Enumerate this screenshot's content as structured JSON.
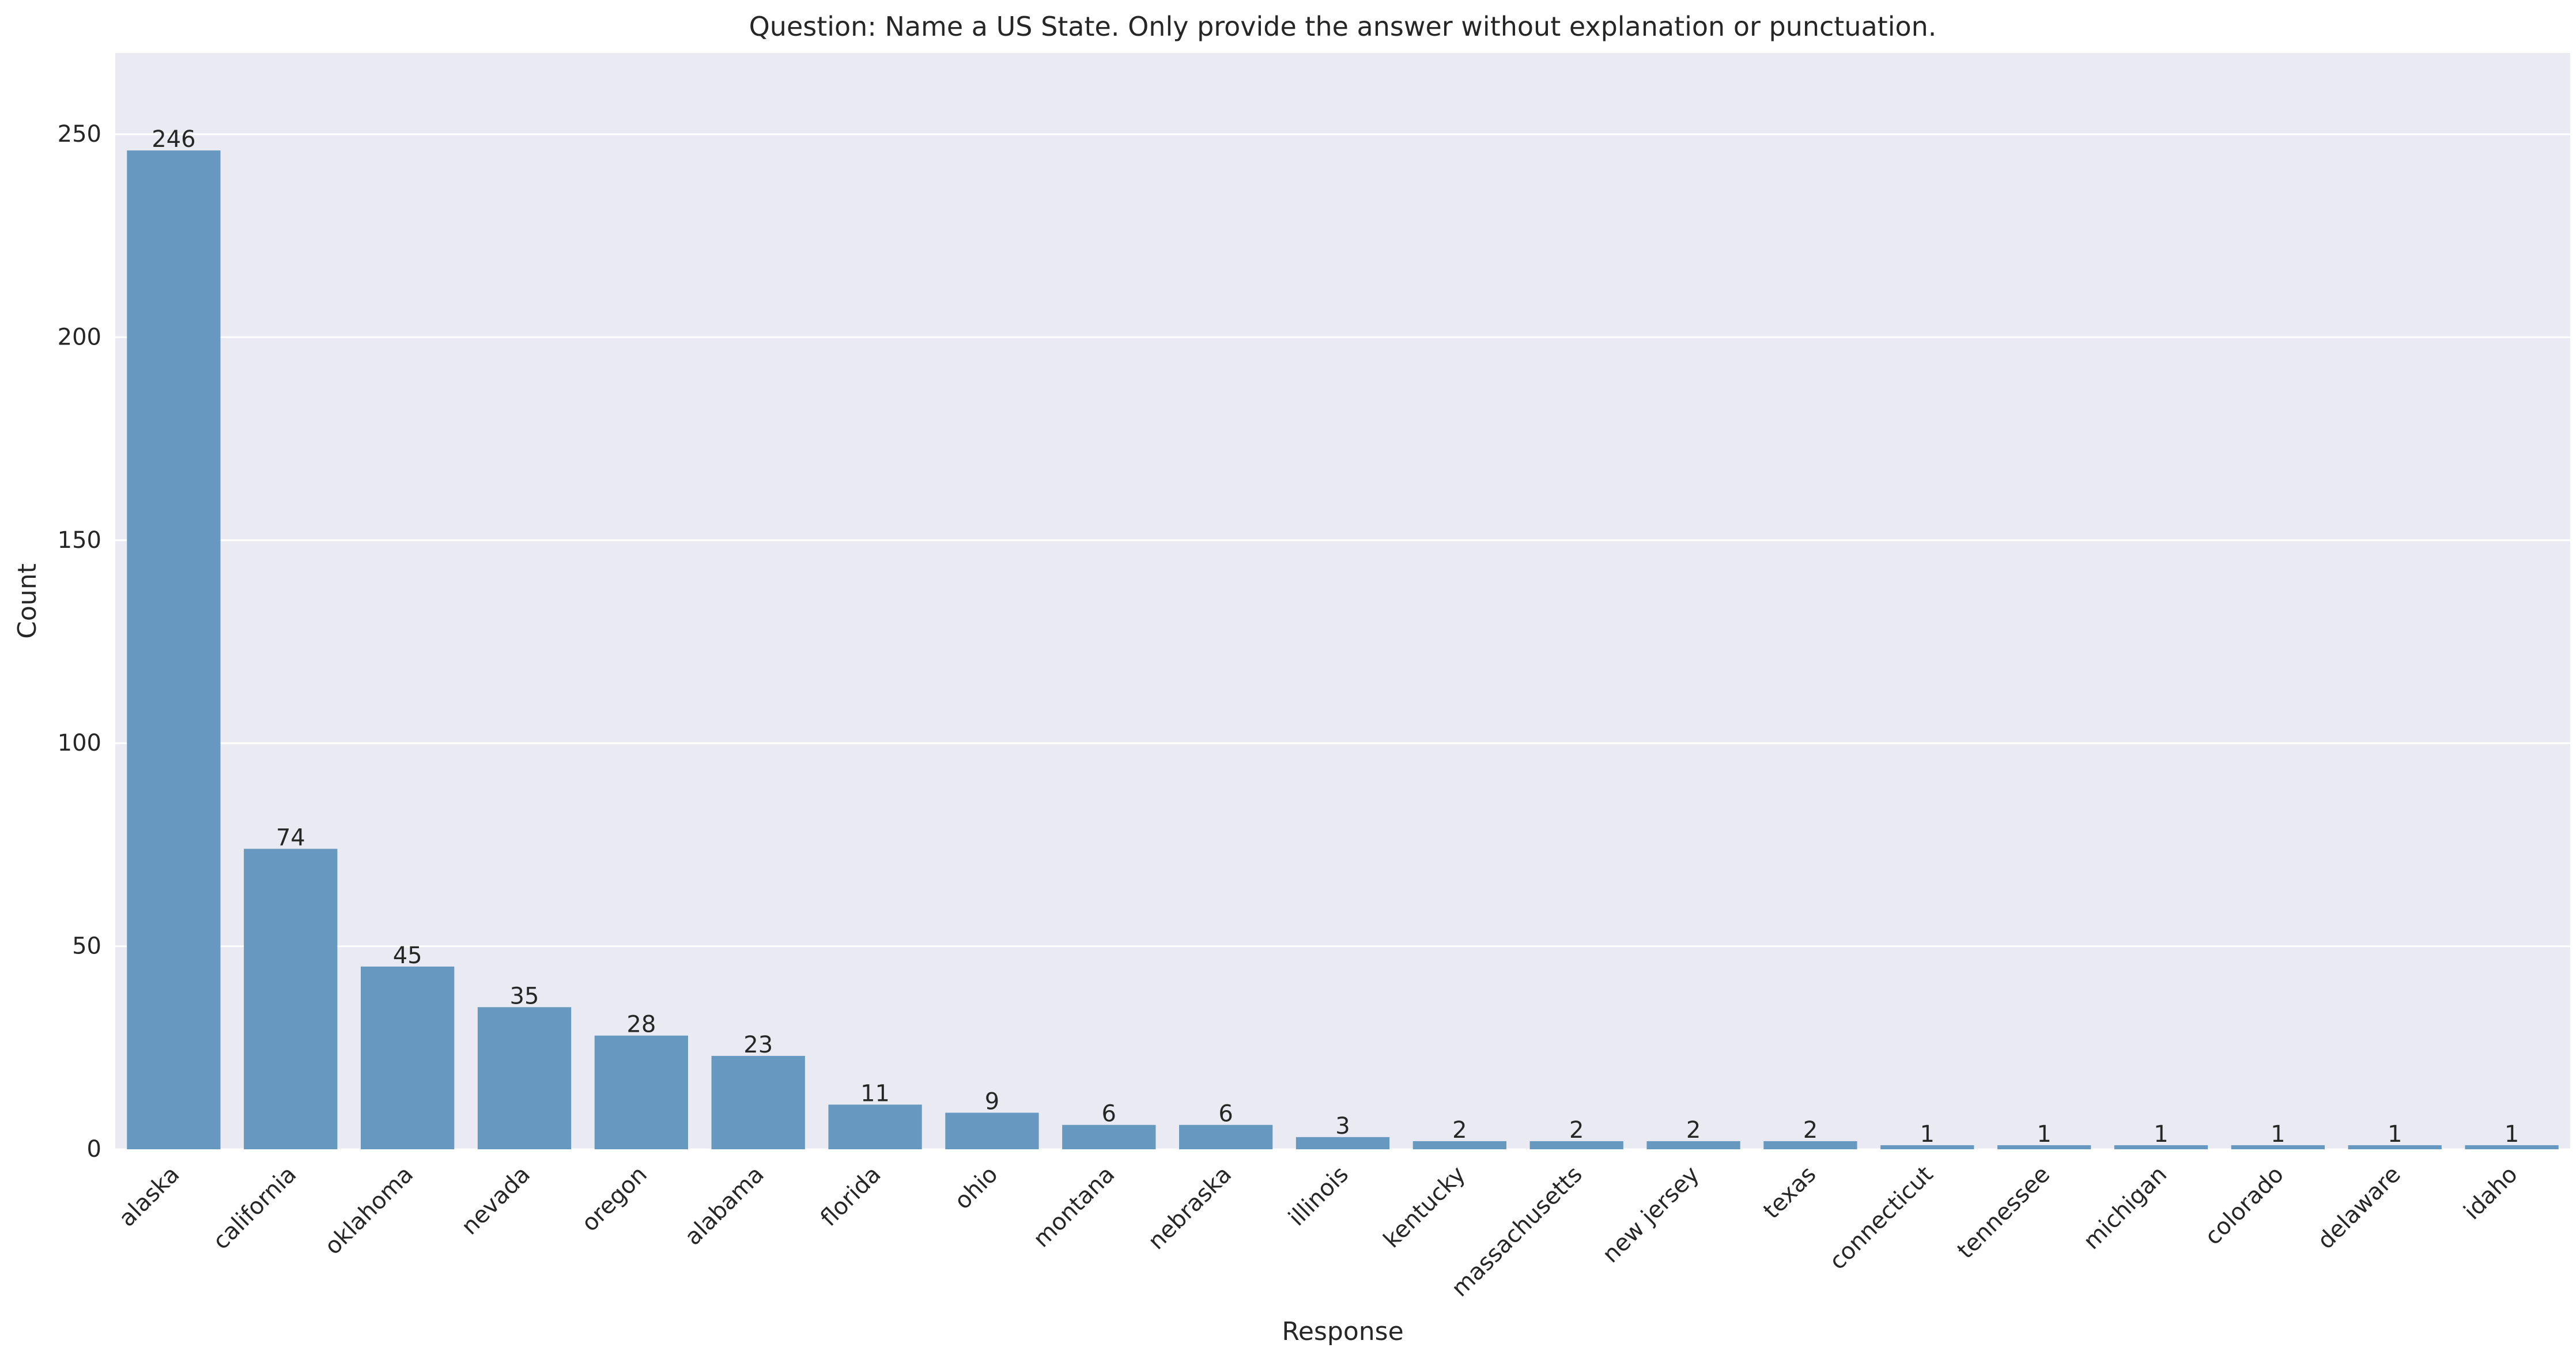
{
  "chart_data": {
    "type": "bar",
    "title": "Question: Name a US State. Only provide the answer without explanation or punctuation.",
    "xlabel": "Response",
    "ylabel": "Count",
    "categories": [
      "alaska",
      "california",
      "oklahoma",
      "nevada",
      "oregon",
      "alabama",
      "florida",
      "ohio",
      "montana",
      "nebraska",
      "illinois",
      "kentucky",
      "massachusetts",
      "new jersey",
      "texas",
      "connecticut",
      "tennessee",
      "michigan",
      "colorado",
      "delaware",
      "idaho"
    ],
    "values": [
      246,
      74,
      45,
      35,
      28,
      23,
      11,
      9,
      6,
      6,
      3,
      2,
      2,
      2,
      2,
      1,
      1,
      1,
      1,
      1,
      1
    ],
    "data_labels": [
      "246",
      "74",
      "45",
      "35",
      "28",
      "23",
      "11",
      "9",
      "6",
      "6",
      "3",
      "2",
      "2",
      "2",
      "2",
      "1",
      "1",
      "1",
      "1",
      "1",
      "1"
    ],
    "ylim": [
      0,
      270
    ],
    "yticks": [
      0,
      50,
      100,
      150,
      200,
      250
    ],
    "ytick_labels": [
      "0",
      "50",
      "100",
      "150",
      "200",
      "250"
    ],
    "grid": true,
    "colors": {
      "bar": "#6798bf",
      "plot_background": "#eaeaf2",
      "grid": "#ffffff",
      "text": "#262626"
    }
  }
}
